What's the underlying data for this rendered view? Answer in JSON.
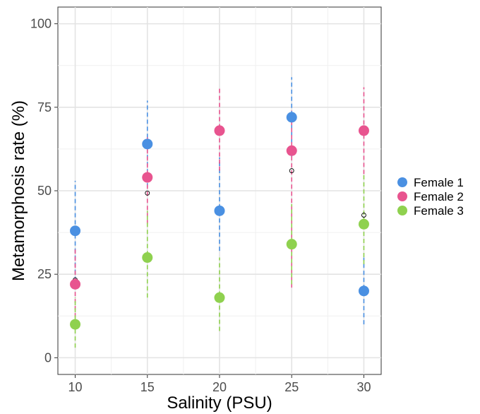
{
  "chart_data": {
    "type": "scatter",
    "title": "",
    "xlabel": "Salinity (PSU)",
    "ylabel": "Metamorphosis rate (%)",
    "x": [
      10,
      15,
      20,
      25,
      30
    ],
    "x_tick_labels": [
      "10",
      "15",
      "20",
      "25",
      "30"
    ],
    "y_tick_labels": [
      "0",
      "25",
      "50",
      "75",
      "100"
    ],
    "y_ticks": [
      0,
      25,
      50,
      75,
      100
    ],
    "xlim": [
      8.8,
      31.2
    ],
    "ylim": [
      -5,
      105
    ],
    "grid": true,
    "legend_position": "right",
    "series": [
      {
        "name": "Female 1",
        "color": "#4a90e2",
        "values": [
          38,
          64,
          44,
          72,
          20
        ],
        "error_low": [
          23,
          51,
          32,
          60,
          10
        ],
        "error_high": [
          53,
          77,
          60,
          84,
          30
        ]
      },
      {
        "name": "Female 2",
        "color": "#e8548f",
        "values": [
          22,
          54,
          68,
          62,
          68
        ],
        "error_low": [
          10,
          40,
          56,
          21,
          55
        ],
        "error_high": [
          33,
          66,
          81,
          74,
          81
        ]
      },
      {
        "name": "Female 3",
        "color": "#8fd14f",
        "values": [
          10,
          30,
          18,
          34,
          40
        ],
        "error_low": [
          3,
          18,
          8,
          22,
          28
        ],
        "error_high": [
          18,
          44,
          30,
          46,
          55
        ]
      }
    ],
    "mean": {
      "values": [
        23.3,
        49.3,
        43.3,
        56,
        42.7
      ]
    }
  }
}
